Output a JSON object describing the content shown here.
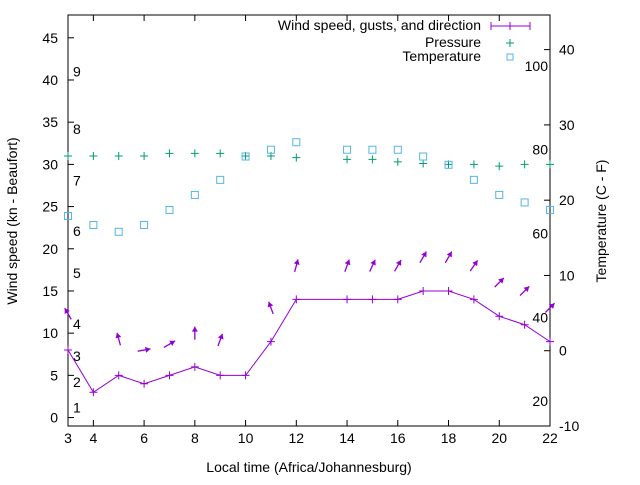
{
  "chart_data": {
    "type": "line",
    "title": "",
    "xlabel": "Local time (Africa/Johannesburg)",
    "ylabel": "Wind speed (kn - Beaufort)",
    "y2label": "Temperature (C - F)",
    "xlim": [
      3,
      22
    ],
    "ylim": [
      -1,
      47.7
    ],
    "y2lim": [
      -10,
      44.6
    ],
    "x_ticks": [
      4,
      6,
      8,
      10,
      12,
      14,
      16,
      18,
      20,
      22
    ],
    "x_tick_labels": [
      "4",
      "6",
      "8",
      "10",
      "12",
      "14",
      "16",
      "18",
      "20",
      "22"
    ],
    "y_ticks": [
      0,
      5,
      10,
      15,
      20,
      25,
      30,
      35,
      40,
      45
    ],
    "y_tick_labels": [
      "0",
      "5",
      "10",
      "15",
      "20",
      "25",
      "30",
      "35",
      "40",
      "45"
    ],
    "y2_ticks": [
      -10,
      0,
      10,
      20,
      30,
      40
    ],
    "y2_tick_labels": [
      "-10",
      "0",
      "10",
      "20",
      "30",
      "40"
    ],
    "beaufort_labels": [
      {
        "label": "1",
        "kn": 1.2
      },
      {
        "label": "2",
        "kn": 4.2
      },
      {
        "label": "3",
        "kn": 7.3
      },
      {
        "label": "4",
        "kn": 11.1
      },
      {
        "label": "5",
        "kn": 17.1
      },
      {
        "label": "6",
        "kn": 22.1
      },
      {
        "label": "7",
        "kn": 28.1
      },
      {
        "label": "8",
        "kn": 34.2
      },
      {
        "label": "9",
        "kn": 41
      }
    ],
    "fahrenheit_labels": [
      {
        "label": "20",
        "c": -6.7
      },
      {
        "label": "40",
        "c": 4.4
      },
      {
        "label": "60",
        "c": 15.6
      },
      {
        "label": "80",
        "c": 26.7
      },
      {
        "label": "100",
        "c": 37.8
      }
    ],
    "legend": {
      "placement": "top-right",
      "entries": [
        "Wind speed, gusts, and direction",
        "Pressure",
        "Temperature"
      ]
    },
    "colors": {
      "wind": "#9400d3",
      "pressure": "#009e73",
      "temperature": "#56b4e9"
    },
    "series": [
      {
        "name": "Wind speed, gusts, and direction",
        "x": [
          3,
          4,
          5,
          6,
          7,
          8,
          9,
          10,
          11,
          12,
          14,
          15,
          16,
          17,
          18,
          19,
          20,
          21,
          22
        ],
        "speed_kn": [
          8,
          3,
          5,
          4,
          5,
          6,
          5,
          5,
          9,
          14,
          14,
          14,
          14,
          15,
          15,
          14,
          12,
          11,
          9
        ]
      },
      {
        "name": "Gust direction arrows",
        "x": [
          3,
          5,
          6,
          7,
          8,
          9,
          11,
          12,
          14,
          15,
          16,
          17,
          18,
          19,
          20,
          21,
          22
        ],
        "gust_kn": [
          12.3,
          9.3,
          8,
          8.7,
          10,
          9.2,
          13,
          18,
          18,
          18,
          18,
          19,
          19,
          18,
          16,
          15,
          13
        ],
        "arrow_heading_deg": [
          330,
          345,
          80,
          60,
          0,
          20,
          340,
          15,
          20,
          25,
          30,
          30,
          30,
          35,
          45,
          45,
          45
        ]
      },
      {
        "name": "Pressure",
        "unit": "left-axis plot units",
        "x": [
          3,
          4,
          5,
          6,
          7,
          8,
          9,
          10,
          11,
          12,
          14,
          15,
          16,
          17,
          18,
          19,
          20,
          21,
          22
        ],
        "values": [
          31,
          31,
          31,
          31,
          31.3,
          31.3,
          31.3,
          31,
          31,
          30.8,
          30.6,
          30.6,
          30.3,
          30.1,
          30,
          30,
          29.8,
          30,
          30
        ]
      },
      {
        "name": "Temperature",
        "unit": "C",
        "x": [
          3,
          4,
          5,
          6,
          7,
          8,
          9,
          10,
          11,
          12,
          14,
          15,
          16,
          17,
          18,
          19,
          20,
          21,
          22
        ],
        "values": [
          17.9,
          16.7,
          15.8,
          16.7,
          18.7,
          20.7,
          22.7,
          25.8,
          26.7,
          27.7,
          26.7,
          26.7,
          26.7,
          25.8,
          24.7,
          22.7,
          20.7,
          19.7,
          18.7
        ]
      }
    ]
  }
}
